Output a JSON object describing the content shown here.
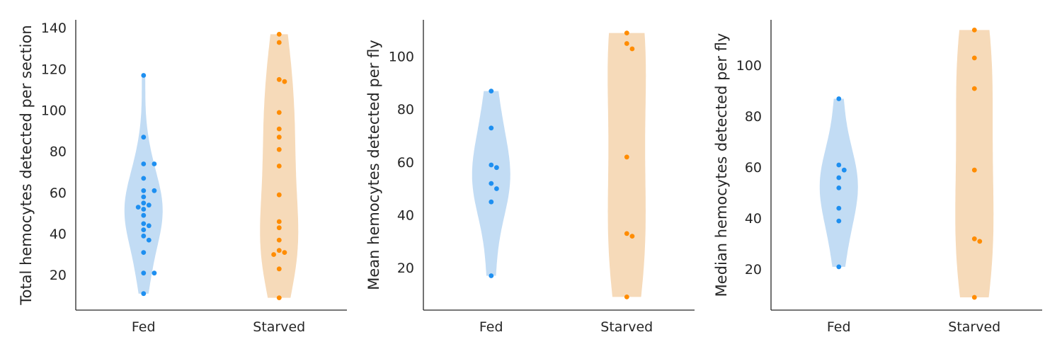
{
  "chart_data": [
    {
      "type": "violin",
      "ylabel": "Total hemocytes detected per section",
      "categories": [
        "Fed",
        "Starved"
      ],
      "yticks": [
        20,
        40,
        60,
        80,
        100,
        120,
        140
      ],
      "ylim": [
        3,
        144
      ],
      "grid": false,
      "colors": {
        "Fed": "#1e8ff0",
        "Starved": "#ff8c00",
        "Fed_fill": "#c2dcf4",
        "Starved_fill": "#f6dab9"
      },
      "series": [
        {
          "category": "Fed",
          "points": [
            117,
            87,
            74,
            74,
            67,
            61,
            61,
            58,
            55,
            54,
            53,
            52,
            49,
            45,
            44,
            42,
            39,
            37,
            31,
            21,
            21,
            11
          ]
        },
        {
          "category": "Starved",
          "points": [
            137,
            133,
            115,
            114,
            99,
            91,
            87,
            81,
            73,
            59,
            46,
            43,
            37,
            32,
            31,
            30,
            23,
            9
          ]
        }
      ]
    },
    {
      "type": "violin",
      "ylabel": "Mean hemocytes detected per fly",
      "categories": [
        "Fed",
        "Starved"
      ],
      "yticks": [
        20,
        40,
        60,
        80,
        100
      ],
      "ylim": [
        4,
        114
      ],
      "grid": false,
      "colors": {
        "Fed": "#1e8ff0",
        "Starved": "#ff8c00",
        "Fed_fill": "#c2dcf4",
        "Starved_fill": "#f6dab9"
      },
      "series": [
        {
          "category": "Fed",
          "points": [
            87,
            73,
            59,
            58,
            52,
            50,
            45,
            17
          ]
        },
        {
          "category": "Starved",
          "points": [
            109,
            105,
            103,
            62,
            33,
            32,
            9
          ]
        }
      ]
    },
    {
      "type": "violin",
      "ylabel": "Median hemocytes detected per fly",
      "categories": [
        "Fed",
        "Starved"
      ],
      "yticks": [
        20,
        40,
        60,
        80,
        100
      ],
      "ylim": [
        4,
        118
      ],
      "grid": false,
      "colors": {
        "Fed": "#1e8ff0",
        "Starved": "#ff8c00",
        "Fed_fill": "#c2dcf4",
        "Starved_fill": "#f6dab9"
      },
      "series": [
        {
          "category": "Fed",
          "points": [
            87,
            61,
            59,
            56,
            52,
            44,
            39,
            21
          ]
        },
        {
          "category": "Starved",
          "points": [
            114,
            103,
            91,
            59,
            32,
            31,
            9
          ]
        }
      ]
    }
  ]
}
